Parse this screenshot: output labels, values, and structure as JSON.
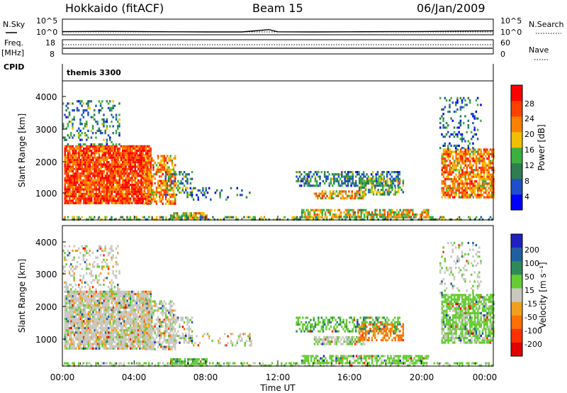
{
  "header": {
    "left": "Hokkaido (fitACF)",
    "center": "Beam 15",
    "right": "06/Jan/2009"
  },
  "noise_panel": {
    "left_label": "N.Sky",
    "right_label": "N.Search",
    "left_ticks": [
      "10^5",
      "10^0"
    ],
    "right_ticks": [
      "10^5",
      "10^0"
    ]
  },
  "freq_panel": {
    "left_label_line1": "Freq.",
    "left_label_line2": "[MHz]",
    "right_label": "Nave",
    "left_ticks": [
      "18",
      "8"
    ],
    "right_ticks": [
      "60",
      "0"
    ]
  },
  "cpid_panel": {
    "label": "CPID",
    "program": "themis 3300"
  },
  "power_panel": {
    "ylabel": "Slant Range [km]",
    "yticks": [
      "4000",
      "3000",
      "2000",
      "1000"
    ],
    "colorbar_label": "Power [dB]",
    "colorbar_ticks": [
      "28",
      "24",
      "20",
      "16",
      "12",
      "8",
      "4"
    ],
    "colors": [
      "#0000ff",
      "#1f4fc8",
      "#2e7d4f",
      "#3cb040",
      "#f0c000",
      "#ff8000",
      "#ff4000",
      "#ff0000"
    ]
  },
  "velocity_panel": {
    "ylabel": "Slant Range [km]",
    "yticks": [
      "4000",
      "3000",
      "2000",
      "1000"
    ],
    "colorbar_label": "Velocity [m s⁻¹]",
    "colorbar_ticks": [
      "200",
      "100",
      "50",
      "15",
      "-15",
      "-50",
      "-100",
      "-200"
    ],
    "colors": [
      "#2020c0",
      "#2060a0",
      "#2e8b57",
      "#66cc33",
      "#c8c8c0",
      "#f0a020",
      "#ff7000",
      "#ff3000",
      "#e00000"
    ]
  },
  "xaxis": {
    "label": "Time UT",
    "ticks": [
      "00:00",
      "04:00",
      "08:00",
      "12:00",
      "16:00",
      "20:00",
      "00:00"
    ]
  },
  "chart_data": {
    "type": "heatmap",
    "title": "Hokkaido (fitACF)  Beam 15  06/Jan/2009",
    "xlabel": "Time UT",
    "ylabel": "Slant Range [km]",
    "xlim_hours": [
      0,
      24
    ],
    "ylim_km": [
      180,
      4500
    ],
    "grid": false,
    "power_scale_dB": [
      0,
      32
    ],
    "velocity_scale_ms": [
      -250,
      250
    ],
    "scatter_regions": [
      {
        "t0": 0.1,
        "t1": 4.9,
        "r0": 700,
        "r1": 2500,
        "power": 26,
        "velocity": 0,
        "density": 0.9
      },
      {
        "t0": 0.0,
        "t1": 3.2,
        "r0": 2500,
        "r1": 3900,
        "power": 10,
        "velocity": 0,
        "density": 0.25
      },
      {
        "t0": 4.5,
        "t1": 6.3,
        "r0": 700,
        "r1": 2200,
        "power": 22,
        "velocity": 0,
        "density": 0.6
      },
      {
        "t0": 5.7,
        "t1": 7.2,
        "r0": 900,
        "r1": 1700,
        "power": 12,
        "velocity": 5,
        "density": 0.4
      },
      {
        "t0": 6.0,
        "t1": 8.0,
        "r0": 250,
        "r1": 420,
        "power": 18,
        "velocity": 40,
        "density": 0.8
      },
      {
        "t0": 0.0,
        "t1": 24.0,
        "r0": 190,
        "r1": 300,
        "power": 14,
        "velocity": 20,
        "density": 0.45
      },
      {
        "t0": 13.3,
        "t1": 20.4,
        "r0": 300,
        "r1": 520,
        "power": 18,
        "velocity": 30,
        "density": 0.65
      },
      {
        "t0": 13.0,
        "t1": 18.8,
        "r0": 1250,
        "r1": 1700,
        "power": 10,
        "velocity": 40,
        "density": 0.5
      },
      {
        "t0": 14.0,
        "t1": 16.8,
        "r0": 850,
        "r1": 1100,
        "power": 20,
        "velocity": 10,
        "density": 0.6
      },
      {
        "t0": 16.5,
        "t1": 19.0,
        "r0": 1000,
        "r1": 1500,
        "power": 14,
        "velocity": -60,
        "density": 0.55
      },
      {
        "t0": 21.1,
        "t1": 24.0,
        "r0": 900,
        "r1": 2400,
        "power": 22,
        "velocity": 25,
        "density": 0.75
      },
      {
        "t0": 21.0,
        "t1": 23.3,
        "r0": 2400,
        "r1": 4000,
        "power": 8,
        "velocity": 5,
        "density": 0.2
      },
      {
        "t0": 7.0,
        "t1": 10.5,
        "r0": 800,
        "r1": 1200,
        "power": 6,
        "velocity": 0,
        "density": 0.15
      }
    ],
    "noise_series": {
      "x_hours": [
        0,
        2,
        4,
        6,
        8,
        10,
        11.5,
        12,
        14,
        16,
        18,
        20,
        22,
        24
      ],
      "values_log10": [
        0.6,
        0.7,
        0.65,
        0.55,
        0.5,
        0.5,
        1.3,
        0.55,
        0.5,
        0.55,
        0.6,
        0.65,
        0.8,
        0.9
      ]
    },
    "freq_series": {
      "x_hours": [
        0,
        6,
        7,
        24
      ],
      "values_mhz": [
        11.0,
        11.0,
        10.8,
        10.8
      ]
    },
    "nave_series": {
      "x_hours": [
        0,
        24
      ],
      "values": [
        19,
        19
      ]
    }
  }
}
